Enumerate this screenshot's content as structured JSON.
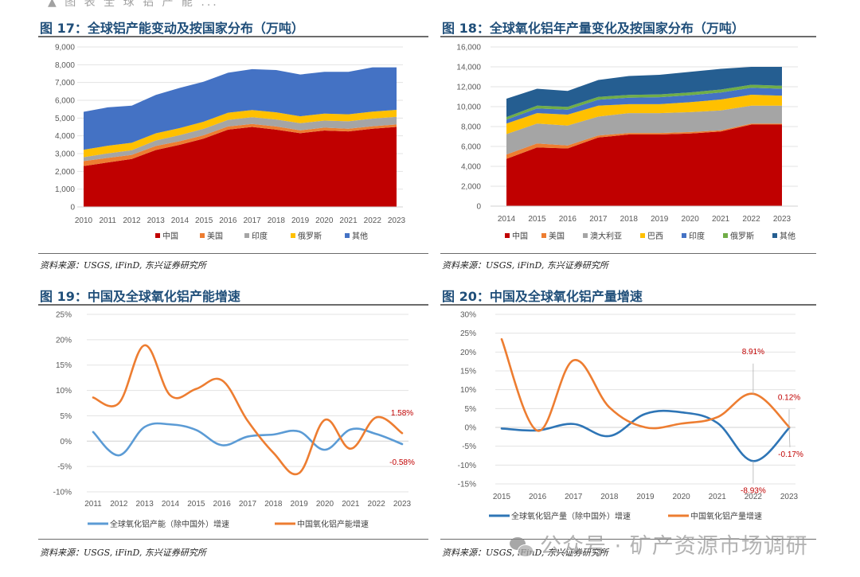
{
  "header_cutoff_text": "▲ 图 表 全 球 铝 产 能 ...",
  "figures": {
    "fig17": {
      "title": "图 17：全球铝产能变动及按国家分布（万吨）",
      "source": "资料来源：USGS, iFinD, 东兴证券研究所"
    },
    "fig18": {
      "title": "图 18：全球氧化铝年产量变化及按国家分布（万吨）",
      "source": "资料来源：USGS, iFinD, 东兴证券研究所"
    },
    "fig19": {
      "title": "图 19：中国及全球氧化铝产能增速",
      "source": "资料来源：USGS, iFinD, 东兴证券研究所"
    },
    "fig20": {
      "title": "图 20：中国及全球氧化铝产量增速",
      "source": "资料来源：USGS, iFinD, 东兴证券研究所"
    }
  },
  "watermark": {
    "text": "公众号 · 矿产资源市场调研",
    "icon": "wechat-icon"
  },
  "chart_data": [
    {
      "id": "fig17",
      "type": "area",
      "stacked": true,
      "title": "全球铝产能变动及按国家分布（万吨）",
      "categories": [
        "2010",
        "2011",
        "2012",
        "2013",
        "2014",
        "2015",
        "2016",
        "2017",
        "2018",
        "2019",
        "2020",
        "2021",
        "2022",
        "2023"
      ],
      "ylim": [
        0,
        9000
      ],
      "yticks": [
        0,
        1000,
        2000,
        3000,
        4000,
        5000,
        6000,
        7000,
        8000,
        9000
      ],
      "ytick_labels": [
        "0",
        "1,000",
        "2,000",
        "3,000",
        "4,000",
        "5,000",
        "6,000",
        "7,000",
        "8,000",
        "9,000"
      ],
      "grid": true,
      "legend": "bottom",
      "series": [
        {
          "name": "中国",
          "color": "#c00000",
          "values": [
            2300,
            2500,
            2700,
            3200,
            3500,
            3850,
            4350,
            4500,
            4350,
            4150,
            4300,
            4250,
            4400,
            4500
          ]
        },
        {
          "name": "美国",
          "color": "#ed7d31",
          "values": [
            280,
            260,
            230,
            230,
            200,
            190,
            180,
            170,
            180,
            160,
            160,
            150,
            140,
            140
          ]
        },
        {
          "name": "印度",
          "color": "#a5a5a5",
          "values": [
            220,
            250,
            260,
            310,
            340,
            360,
            370,
            380,
            390,
            400,
            400,
            420,
            430,
            430
          ]
        },
        {
          "name": "俄罗斯",
          "color": "#ffc000",
          "values": [
            420,
            430,
            420,
            400,
            400,
            400,
            400,
            400,
            400,
            390,
            390,
            390,
            390,
            390
          ]
        },
        {
          "name": "其他",
          "color": "#4472c4",
          "values": [
            2130,
            2160,
            2090,
            2160,
            2260,
            2250,
            2250,
            2300,
            2380,
            2350,
            2350,
            2390,
            2490,
            2390
          ]
        }
      ]
    },
    {
      "id": "fig18",
      "type": "area",
      "stacked": true,
      "title": "全球氧化铝年产量变化及按国家分布（万吨）",
      "categories": [
        "2014",
        "2015",
        "2016",
        "2017",
        "2018",
        "2019",
        "2020",
        "2021",
        "2022",
        "2023"
      ],
      "ylim": [
        0,
        16000
      ],
      "yticks": [
        0,
        2000,
        4000,
        6000,
        8000,
        10000,
        12000,
        14000,
        16000
      ],
      "ytick_labels": [
        "0",
        "2,000",
        "4,000",
        "6,000",
        "8,000",
        "10,000",
        "12,000",
        "14,000",
        "16,000"
      ],
      "grid": true,
      "legend": "bottom",
      "series": [
        {
          "name": "中国",
          "color": "#c00000",
          "values": [
            4750,
            5900,
            5800,
            6900,
            7200,
            7200,
            7300,
            7500,
            8200,
            8200
          ]
        },
        {
          "name": "美国",
          "color": "#ed7d31",
          "values": [
            440,
            400,
            300,
            200,
            150,
            150,
            150,
            120,
            100,
            100
          ]
        },
        {
          "name": "澳大利亚",
          "color": "#a5a5a5",
          "values": [
            2050,
            2000,
            2000,
            1900,
            2000,
            2000,
            2000,
            2000,
            1800,
            1800
          ]
        },
        {
          "name": "巴西",
          "color": "#ffc000",
          "values": [
            1060,
            1050,
            1100,
            1100,
            900,
            900,
            1000,
            1100,
            1100,
            1000
          ]
        },
        {
          "name": "印度",
          "color": "#4472c4",
          "values": [
            390,
            470,
            500,
            600,
            650,
            700,
            700,
            700,
            700,
            700
          ]
        },
        {
          "name": "俄罗斯",
          "color": "#70ad47",
          "values": [
            260,
            280,
            280,
            280,
            280,
            280,
            280,
            300,
            300,
            300
          ]
        },
        {
          "name": "其他",
          "color": "#255e91",
          "values": [
            1850,
            1700,
            1600,
            1700,
            1900,
            1970,
            2070,
            2080,
            1800,
            1900
          ]
        }
      ]
    },
    {
      "id": "fig19",
      "type": "line",
      "title": "中国及全球氧化铝产能增速",
      "categories": [
        "2011",
        "2012",
        "2013",
        "2014",
        "2015",
        "2016",
        "2017",
        "2018",
        "2019",
        "2020",
        "2021",
        "2022",
        "2023"
      ],
      "ylim": [
        -10,
        25
      ],
      "yticks": [
        -10,
        -5,
        0,
        5,
        10,
        15,
        20,
        25
      ],
      "ytick_labels": [
        "-10%",
        "-5%",
        "0%",
        "5%",
        "10%",
        "15%",
        "20%",
        "25%"
      ],
      "grid": true,
      "legend": "bottom",
      "series": [
        {
          "name": "全球氧化铝产能（除中国外）增速",
          "color": "#5b9bd5",
          "values": [
            1.8,
            -2.8,
            2.8,
            3.3,
            2.2,
            -0.8,
            0.9,
            1.3,
            1.9,
            -1.7,
            2.3,
            1.4,
            -0.58
          ]
        },
        {
          "name": "中国氧化铝产能增速",
          "color": "#ed7d31",
          "values": [
            8.6,
            7.5,
            18.9,
            9.0,
            10.3,
            12.0,
            4.0,
            -2.3,
            -6.3,
            4.2,
            -1.5,
            4.7,
            1.58
          ]
        }
      ],
      "annotations": [
        {
          "series": 1,
          "index": 12,
          "text": "1.58%"
        },
        {
          "series": 0,
          "index": 12,
          "text": "-0.58%"
        }
      ]
    },
    {
      "id": "fig20",
      "type": "line",
      "title": "中国及全球氧化铝产量增速",
      "categories": [
        "2015",
        "2016",
        "2017",
        "2018",
        "2019",
        "2020",
        "2021",
        "2022",
        "2023"
      ],
      "ylim": [
        -15,
        30
      ],
      "yticks": [
        -15,
        -10,
        -5,
        0,
        5,
        10,
        15,
        20,
        25,
        30
      ],
      "ytick_labels": [
        "-15%",
        "-10%",
        "-5%",
        "0%",
        "5%",
        "10%",
        "15%",
        "20%",
        "25%",
        "30%"
      ],
      "grid": true,
      "legend": "bottom",
      "series": [
        {
          "name": "全球氧化铝产量（除中国外）增速",
          "color": "#2e75b6",
          "values": [
            -0.3,
            -0.8,
            0.9,
            -2.3,
            3.6,
            4.0,
            1.2,
            -8.93,
            -0.17
          ]
        },
        {
          "name": "中国氧化铝产量增速",
          "color": "#ed7d31",
          "values": [
            23.4,
            -0.9,
            17.8,
            5.3,
            0.0,
            1.0,
            2.7,
            8.91,
            0.12
          ]
        }
      ],
      "annotations": [
        {
          "series": 1,
          "index": 7,
          "text": "8.91%"
        },
        {
          "series": 1,
          "index": 8,
          "text": "0.12%"
        },
        {
          "series": 0,
          "index": 7,
          "text": "-8.93%"
        },
        {
          "series": 0,
          "index": 8,
          "text": "-0.17%"
        }
      ]
    }
  ]
}
